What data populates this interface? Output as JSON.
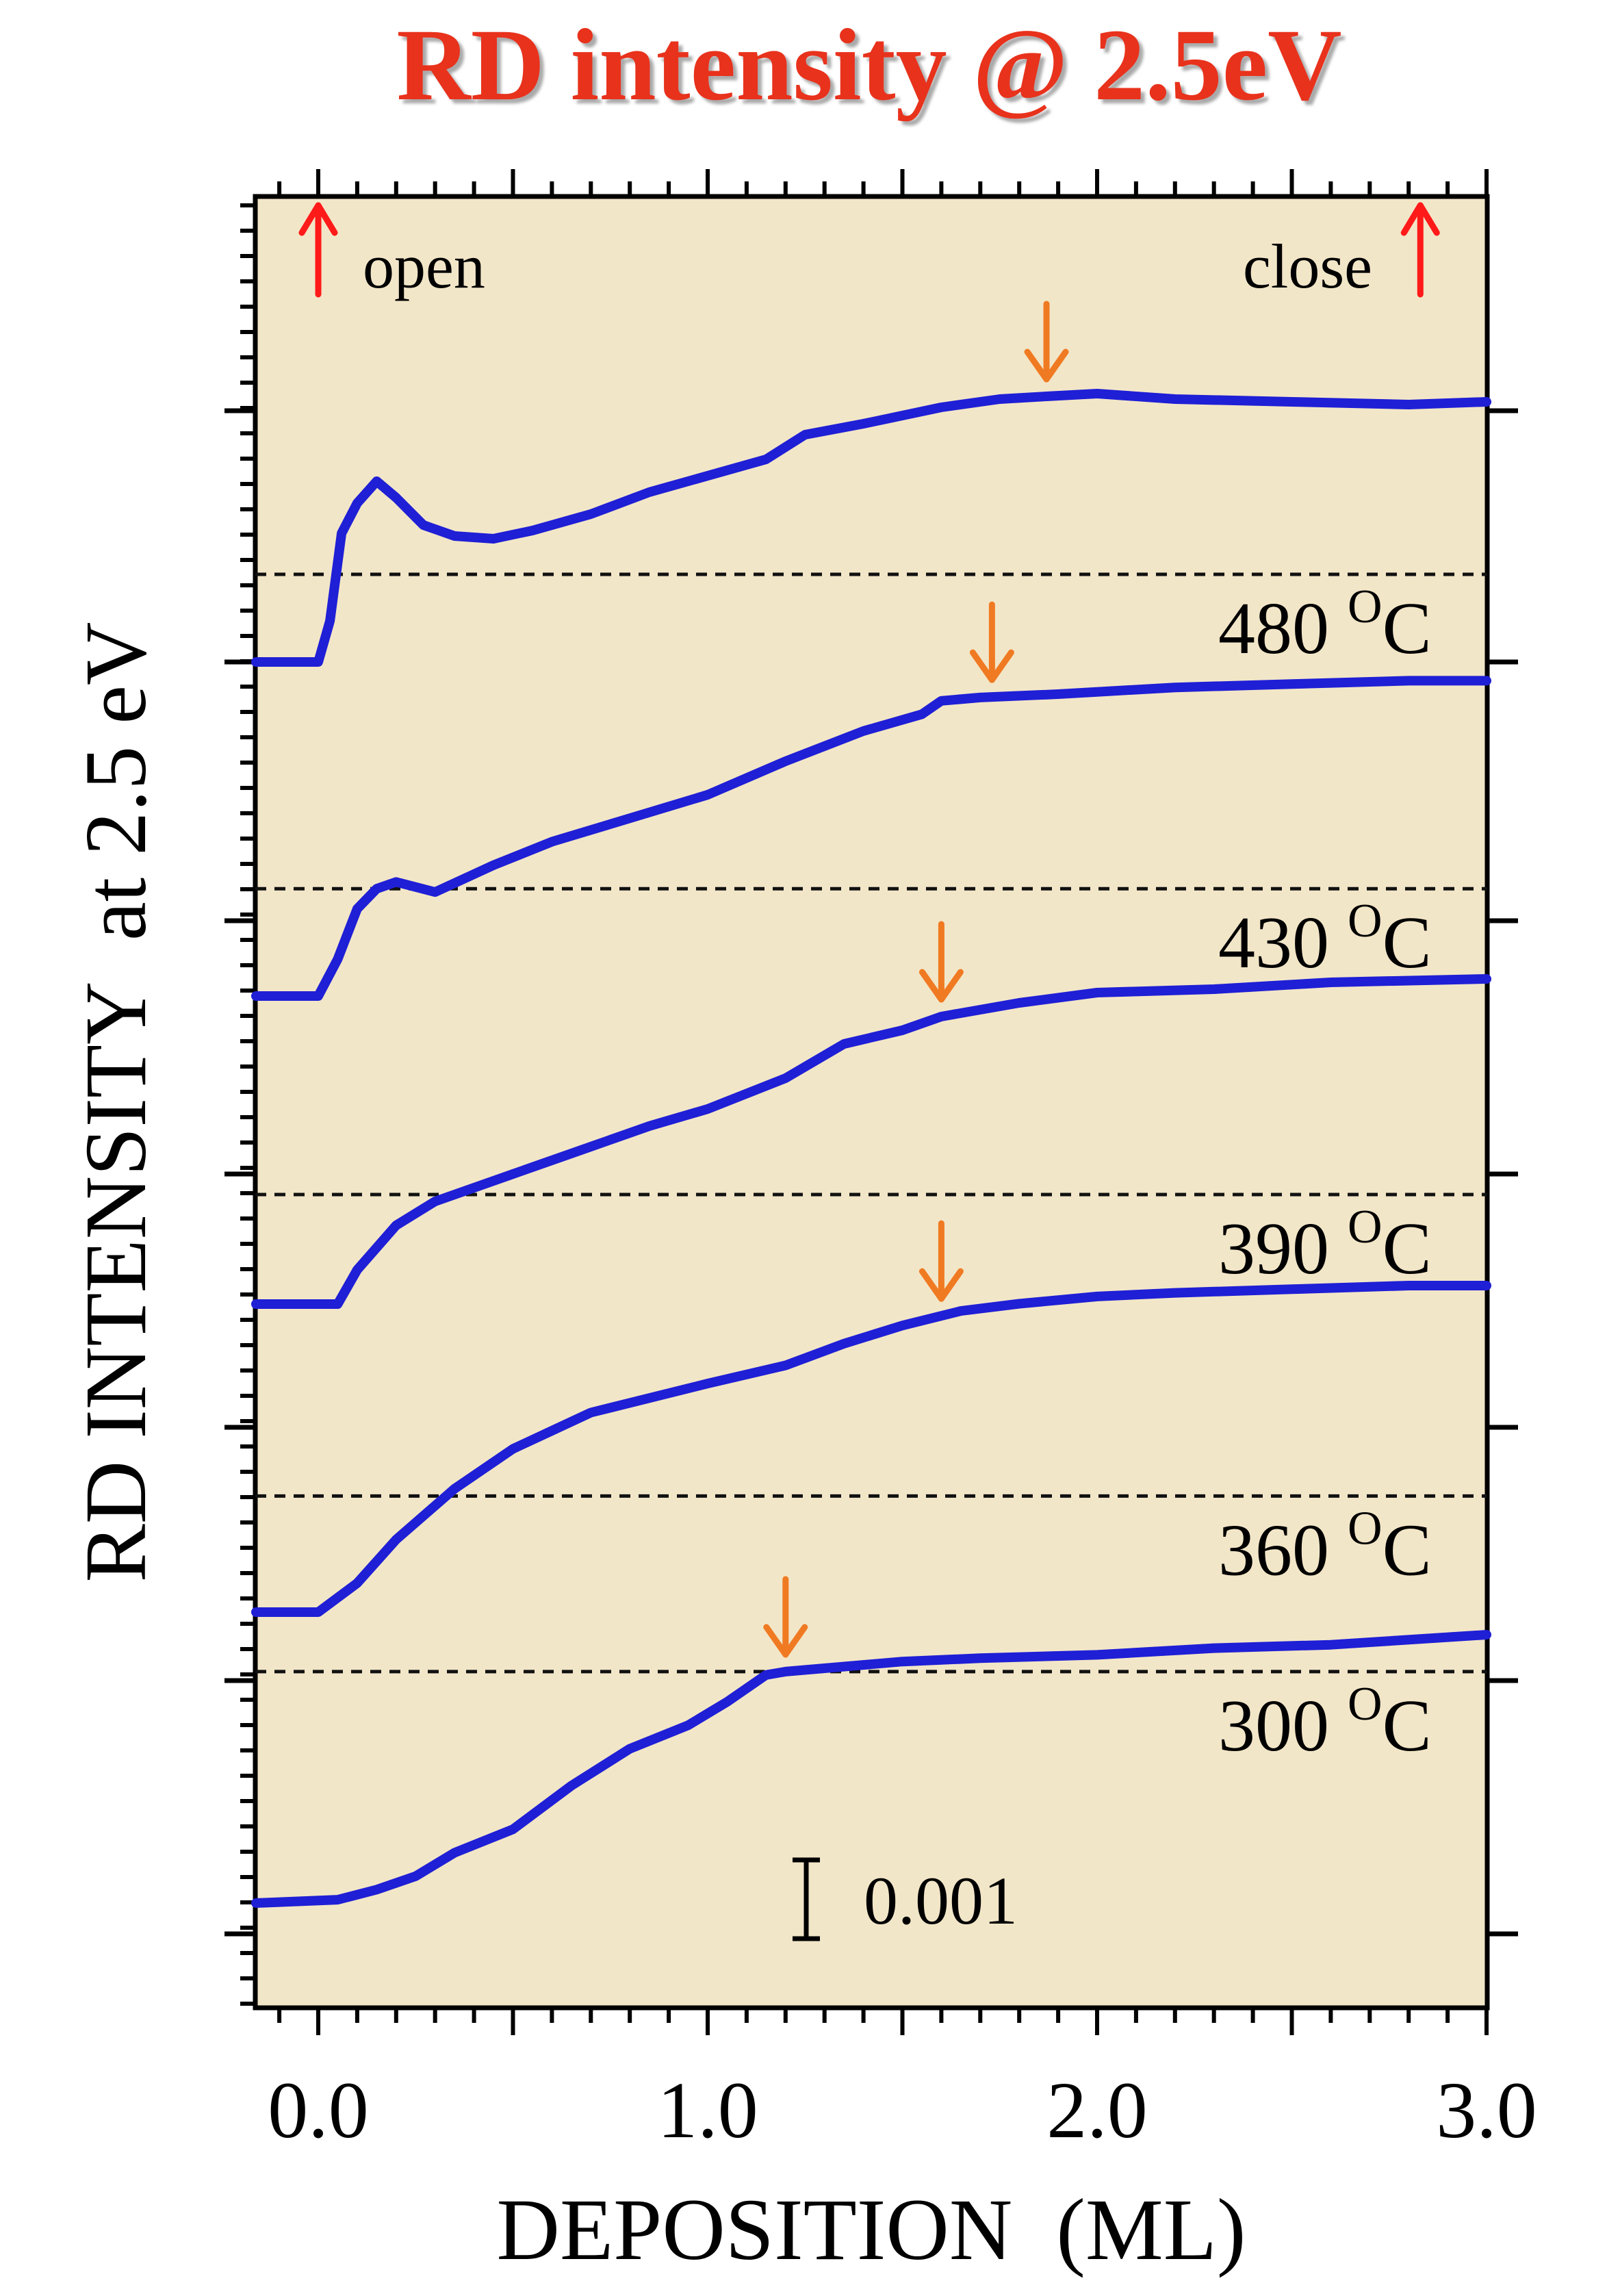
{
  "chart_data": {
    "type": "line",
    "title": "RD intensity @ 2.5eV",
    "xlabel": "DEPOSITION  (ML)",
    "ylabel": "RD INTENSITY  at 2.5 eV",
    "xlim": [
      -0.16,
      3.0
    ],
    "x_ticks": [
      "0.0",
      "1.0",
      "2.0",
      "3.0"
    ],
    "annotations": {
      "open": "open",
      "close": "close",
      "open_x": 0.0,
      "close_x": 2.83,
      "scale_bar": "0.001"
    },
    "colors": {
      "title": "#e8311a",
      "series": "#1f1fd6",
      "shutter_arrow": "#ff1a1a",
      "saturation_arrow": "#f07a22",
      "plot_background": "#f2e6c8",
      "axis": "#000000"
    },
    "series": [
      {
        "name": "480 °C",
        "temp": "480",
        "arrow_x": 1.87,
        "baseline": 0.32,
        "points": [
          [
            -0.16,
            0.0
          ],
          [
            0.0,
            0.0
          ],
          [
            0.03,
            0.15
          ],
          [
            0.06,
            0.47
          ],
          [
            0.1,
            0.58
          ],
          [
            0.15,
            0.66
          ],
          [
            0.2,
            0.6
          ],
          [
            0.27,
            0.5
          ],
          [
            0.35,
            0.46
          ],
          [
            0.45,
            0.45
          ],
          [
            0.55,
            0.48
          ],
          [
            0.7,
            0.54
          ],
          [
            0.85,
            0.62
          ],
          [
            1.0,
            0.68
          ],
          [
            1.15,
            0.74
          ],
          [
            1.25,
            0.83
          ],
          [
            1.4,
            0.87
          ],
          [
            1.6,
            0.93
          ],
          [
            1.75,
            0.96
          ],
          [
            1.87,
            0.97
          ],
          [
            2.0,
            0.98
          ],
          [
            2.2,
            0.96
          ],
          [
            2.5,
            0.95
          ],
          [
            2.8,
            0.94
          ],
          [
            3.0,
            0.95
          ]
        ]
      },
      {
        "name": "430 °C",
        "temp": "430",
        "arrow_x": 1.73,
        "baseline": 0.32,
        "points": [
          [
            -0.16,
            0.0
          ],
          [
            0.0,
            0.0
          ],
          [
            0.05,
            0.11
          ],
          [
            0.1,
            0.26
          ],
          [
            0.15,
            0.32
          ],
          [
            0.2,
            0.34
          ],
          [
            0.3,
            0.31
          ],
          [
            0.45,
            0.39
          ],
          [
            0.6,
            0.46
          ],
          [
            0.8,
            0.53
          ],
          [
            1.0,
            0.6
          ],
          [
            1.2,
            0.7
          ],
          [
            1.4,
            0.79
          ],
          [
            1.55,
            0.84
          ],
          [
            1.6,
            0.88
          ],
          [
            1.7,
            0.89
          ],
          [
            1.9,
            0.9
          ],
          [
            2.2,
            0.92
          ],
          [
            2.5,
            0.93
          ],
          [
            2.8,
            0.94
          ],
          [
            3.0,
            0.94
          ]
        ]
      },
      {
        "name": "390 °C",
        "temp": "390",
        "arrow_x": 1.6,
        "baseline": 0.32,
        "points": [
          [
            -0.16,
            0.0
          ],
          [
            0.05,
            0.0
          ],
          [
            0.1,
            0.1
          ],
          [
            0.2,
            0.23
          ],
          [
            0.3,
            0.3
          ],
          [
            0.5,
            0.38
          ],
          [
            0.7,
            0.46
          ],
          [
            0.85,
            0.52
          ],
          [
            1.0,
            0.57
          ],
          [
            1.2,
            0.66
          ],
          [
            1.35,
            0.76
          ],
          [
            1.5,
            0.8
          ],
          [
            1.6,
            0.84
          ],
          [
            1.8,
            0.88
          ],
          [
            2.0,
            0.91
          ],
          [
            2.3,
            0.92
          ],
          [
            2.6,
            0.94
          ],
          [
            3.0,
            0.95
          ]
        ]
      },
      {
        "name": "360 °C",
        "temp": "360",
        "arrow_x": 1.6,
        "baseline": 0.32,
        "points": [
          [
            -0.16,
            0.0
          ],
          [
            0.0,
            0.0
          ],
          [
            0.1,
            0.08
          ],
          [
            0.2,
            0.2
          ],
          [
            0.35,
            0.34
          ],
          [
            0.5,
            0.45
          ],
          [
            0.6,
            0.5
          ],
          [
            0.7,
            0.55
          ],
          [
            0.85,
            0.59
          ],
          [
            1.0,
            0.63
          ],
          [
            1.2,
            0.68
          ],
          [
            1.35,
            0.74
          ],
          [
            1.5,
            0.79
          ],
          [
            1.65,
            0.83
          ],
          [
            1.8,
            0.85
          ],
          [
            2.0,
            0.87
          ],
          [
            2.2,
            0.88
          ],
          [
            2.5,
            0.89
          ],
          [
            2.8,
            0.9
          ],
          [
            3.0,
            0.9
          ]
        ]
      },
      {
        "name": "300 °C",
        "temp": "300",
        "arrow_x": 1.2,
        "baseline": 0.69,
        "points": [
          [
            -0.16,
            0.0
          ],
          [
            0.05,
            0.01
          ],
          [
            0.15,
            0.04
          ],
          [
            0.25,
            0.08
          ],
          [
            0.35,
            0.15
          ],
          [
            0.5,
            0.22
          ],
          [
            0.65,
            0.35
          ],
          [
            0.8,
            0.46
          ],
          [
            0.95,
            0.53
          ],
          [
            1.05,
            0.6
          ],
          [
            1.15,
            0.68
          ],
          [
            1.2,
            0.69
          ],
          [
            1.3,
            0.7
          ],
          [
            1.5,
            0.72
          ],
          [
            1.7,
            0.73
          ],
          [
            2.0,
            0.74
          ],
          [
            2.3,
            0.76
          ],
          [
            2.6,
            0.77
          ],
          [
            3.0,
            0.8
          ]
        ]
      }
    ]
  }
}
